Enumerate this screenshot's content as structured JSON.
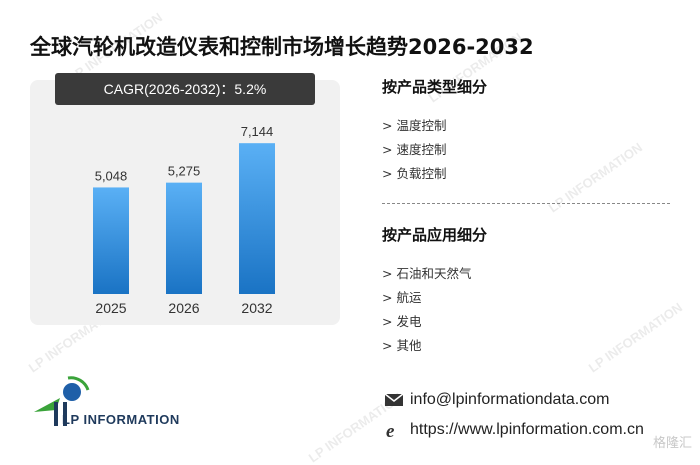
{
  "title": "全球汽轮机改造仪表和控制市场增长趋势2026-2032",
  "cagr_label": "CAGR(2026-2032)：5.2%",
  "chart_data": {
    "type": "bar",
    "categories": [
      "2025",
      "2026",
      "2032"
    ],
    "values": [
      5048,
      5275,
      7144
    ],
    "value_labels": [
      "5,048",
      "5,275",
      "7,144"
    ],
    "ylim": [
      0,
      9000
    ],
    "grid": false,
    "colors": {
      "bar_top": "#5ab0f5",
      "bar_bottom": "#1a73c4"
    }
  },
  "segments": {
    "by_type": {
      "heading": "按产品类型细分",
      "items": [
        "> 温度控制",
        "> 速度控制",
        "> 负载控制"
      ]
    },
    "by_application": {
      "heading": "按产品应用细分",
      "items": [
        "> 石油和天然气",
        "> 航运",
        "> 发电",
        "> 其他"
      ]
    }
  },
  "contact": {
    "email": "info@lpinformationdata.com",
    "website": "https://www.lpinformation.com.cn",
    "email_icon": "envelope-icon",
    "web_icon": "ie-browser-icon"
  },
  "logo": {
    "text": "LP INFORMATION",
    "icon": "lp-logo-icon"
  },
  "watermark_text": "LP INFORMATION",
  "corner_brand": "格隆汇",
  "colors": {
    "panel_bg": "#f1f1f1",
    "cagr_bg": "#3a3a3a",
    "logo_blue": "#1f3a5c",
    "logo_green": "#3aa33a"
  }
}
